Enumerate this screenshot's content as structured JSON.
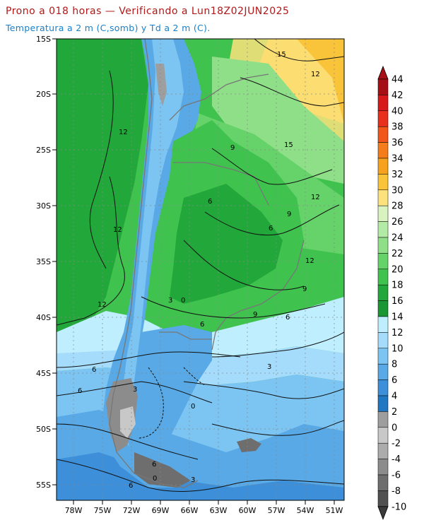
{
  "header": {
    "title": "Prono a 018 horas — Verificando a Lun18Z02JUN2025",
    "subtitle": "Temperatura a 2 m (C,somb) y Td a 2 m (C)."
  },
  "map": {
    "lat_labels": [
      "15S",
      "20S",
      "25S",
      "30S",
      "35S",
      "40S",
      "45S",
      "50S",
      "55S"
    ],
    "lon_labels": [
      "78W",
      "75W",
      "72W",
      "69W",
      "66W",
      "63W",
      "60W",
      "57W",
      "54W",
      "51W"
    ],
    "contour_labels": [
      "15",
      "12",
      "12",
      "12",
      "9",
      "15",
      "12",
      "6",
      "9",
      "6",
      "12",
      "3",
      "0",
      "9",
      "6",
      "12",
      "6",
      "9",
      "6",
      "3",
      "6",
      "0",
      "3",
      "6",
      "3",
      "0",
      "6",
      "3",
      "3",
      "6"
    ]
  },
  "colorbar": {
    "levels": [
      "44",
      "42",
      "40",
      "38",
      "36",
      "34",
      "32",
      "30",
      "28",
      "26",
      "24",
      "22",
      "20",
      "18",
      "16",
      "14",
      "12",
      "10",
      "8",
      "6",
      "4",
      "2",
      "0",
      "-2",
      "-4",
      "-6",
      "-8",
      "-10"
    ],
    "colors": [
      "#a50f15",
      "#d7191c",
      "#e8301c",
      "#f2571a",
      "#f47c1a",
      "#f6a21e",
      "#f9c33a",
      "#fbe27d",
      "#d9f3c0",
      "#b3eaa5",
      "#8fdf88",
      "#66d26a",
      "#3fc24e",
      "#22a83a",
      "#1a9632",
      "#bfefff",
      "#a5dcfb",
      "#7cc4f2",
      "#58a9e6",
      "#3c8fd8",
      "#2277c2",
      "#9e9e9e",
      "#c8c8c8",
      "#acacac",
      "#8c8c8c",
      "#6e6e6e",
      "#505050"
    ]
  }
}
